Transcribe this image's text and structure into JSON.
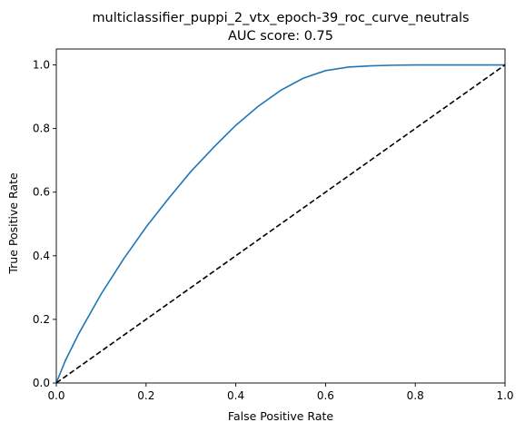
{
  "chart_data": {
    "type": "line",
    "title": "multiclassifier_puppi_2_vtx_epoch-39_roc_curve_neutrals",
    "subtitle": "AUC score: 0.75",
    "xlabel": "False Positive Rate",
    "ylabel": "True Positive Rate",
    "xlim": [
      0,
      1
    ],
    "ylim": [
      0,
      1.05
    ],
    "grid": false,
    "x_ticks": [
      "0.0",
      "0.2",
      "0.4",
      "0.6",
      "0.8",
      "1.0"
    ],
    "y_ticks": [
      "0.0",
      "0.2",
      "0.4",
      "0.6",
      "0.8",
      "1.0"
    ],
    "series": [
      {
        "color": "#1f77b4",
        "style": "solid",
        "x": [
          0.0,
          0.02,
          0.05,
          0.1,
          0.15,
          0.2,
          0.25,
          0.3,
          0.35,
          0.4,
          0.45,
          0.5,
          0.55,
          0.6,
          0.65,
          0.7,
          0.75,
          0.8,
          0.85,
          0.9,
          0.95,
          1.0
        ],
        "y": [
          0.0,
          0.07,
          0.155,
          0.28,
          0.39,
          0.49,
          0.58,
          0.665,
          0.74,
          0.81,
          0.87,
          0.92,
          0.958,
          0.982,
          0.993,
          0.997,
          0.999,
          1.0,
          1.0,
          1.0,
          1.0,
          1.0
        ]
      },
      {
        "color": "#000000",
        "style": "dashed",
        "x": [
          0,
          1
        ],
        "y": [
          0,
          1
        ]
      }
    ]
  }
}
